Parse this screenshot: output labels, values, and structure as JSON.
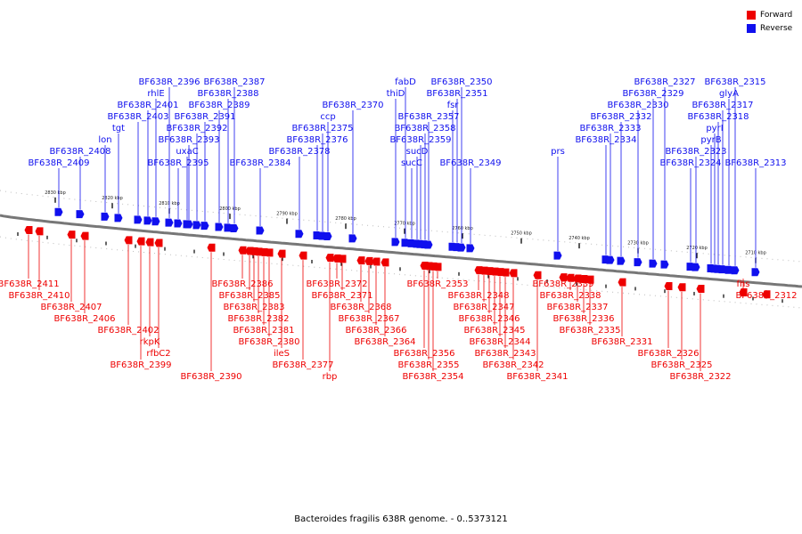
{
  "legend": [
    {
      "label": "Forward",
      "color": "#ee0000"
    },
    {
      "label": "Reverse",
      "color": "#1010ee"
    }
  ],
  "colors": {
    "forward": "#ee0000",
    "reverse": "#1010ee",
    "backbone": "#777777"
  },
  "caption": "Bacteroides fragilis 638R genome. - 0..5373121",
  "ticks": [
    "2830 kbp",
    "2820 kbp",
    "2810 kbp",
    "2800 kbp",
    "2790 kbp",
    "2780 kbp",
    "2770 kbp",
    "2760 kbp",
    "2750 kbp",
    "2740 kbp",
    "2730 kbp",
    "2720 kbp",
    "2710 kbp"
  ],
  "genes": [
    {
      "name": "BF638R_2411",
      "strand": "forward",
      "pos": 32
    },
    {
      "name": "BF638R_2410",
      "strand": "forward",
      "pos": 44
    },
    {
      "name": "BF638R_2409",
      "strand": "reverse",
      "pos": 66
    },
    {
      "name": "BF638R_2408",
      "strand": "reverse",
      "pos": 90
    },
    {
      "name": "BF638R_2407",
      "strand": "forward",
      "pos": 80
    },
    {
      "name": "BF638R_2406",
      "strand": "forward",
      "pos": 95
    },
    {
      "name": "lon",
      "strand": "reverse",
      "pos": 118
    },
    {
      "name": "tgt",
      "strand": "reverse",
      "pos": 133
    },
    {
      "name": "BF638R_2403",
      "strand": "reverse",
      "pos": 155
    },
    {
      "name": "BF638R_2402",
      "strand": "forward",
      "pos": 144
    },
    {
      "name": "BF638R_2401",
      "strand": "reverse",
      "pos": 166
    },
    {
      "name": "rhlE",
      "strand": "reverse",
      "pos": 175
    },
    {
      "name": "rkpK",
      "strand": "forward",
      "pos": 168
    },
    {
      "name": "rfbC2",
      "strand": "forward",
      "pos": 178
    },
    {
      "name": "BF638R_2399",
      "strand": "forward",
      "pos": 158
    },
    {
      "name": "BF638R_2396",
      "strand": "reverse",
      "pos": 190
    },
    {
      "name": "BF638R_2395",
      "strand": "reverse",
      "pos": 200
    },
    {
      "name": "uxaC",
      "strand": "reverse",
      "pos": 210
    },
    {
      "name": "BF638R_2393",
      "strand": "reverse",
      "pos": 212
    },
    {
      "name": "BF638R_2392",
      "strand": "reverse",
      "pos": 221
    },
    {
      "name": "BF638R_2391",
      "strand": "reverse",
      "pos": 230
    },
    {
      "name": "BF638R_2390",
      "strand": "forward",
      "pos": 237
    },
    {
      "name": "BF638R_2389",
      "strand": "reverse",
      "pos": 246
    },
    {
      "name": "BF638R_2388",
      "strand": "reverse",
      "pos": 256
    },
    {
      "name": "BF638R_2387",
      "strand": "reverse",
      "pos": 263
    },
    {
      "name": "BF638R_2386",
      "strand": "forward",
      "pos": 272
    },
    {
      "name": "BF638R_2385",
      "strand": "forward",
      "pos": 280
    },
    {
      "name": "BF638R_2384",
      "strand": "reverse",
      "pos": 292
    },
    {
      "name": "BF638R_2383",
      "strand": "forward",
      "pos": 285
    },
    {
      "name": "BF638R_2382",
      "strand": "forward",
      "pos": 290
    },
    {
      "name": "BF638R_2381",
      "strand": "forward",
      "pos": 296
    },
    {
      "name": "BF638R_2380",
      "strand": "forward",
      "pos": 302
    },
    {
      "name": "ileS",
      "strand": "forward",
      "pos": 316
    },
    {
      "name": "BF638R_2378",
      "strand": "reverse",
      "pos": 336
    },
    {
      "name": "BF638R_2377",
      "strand": "forward",
      "pos": 340
    },
    {
      "name": "BF638R_2376",
      "strand": "reverse",
      "pos": 356
    },
    {
      "name": "BF638R_2375",
      "strand": "reverse",
      "pos": 362
    },
    {
      "name": "ccp",
      "strand": "reverse",
      "pos": 368
    },
    {
      "name": "rbp",
      "strand": "forward",
      "pos": 370
    },
    {
      "name": "BF638R_2372",
      "strand": "forward",
      "pos": 378
    },
    {
      "name": "BF638R_2371",
      "strand": "forward",
      "pos": 384
    },
    {
      "name": "BF638R_2370",
      "strand": "reverse",
      "pos": 396
    },
    {
      "name": "BF638R_2368",
      "strand": "forward",
      "pos": 405
    },
    {
      "name": "BF638R_2367",
      "strand": "forward",
      "pos": 414
    },
    {
      "name": "BF638R_2366",
      "strand": "forward",
      "pos": 422
    },
    {
      "name": "BF638R_2364",
      "strand": "forward",
      "pos": 432
    },
    {
      "name": "thiD",
      "strand": "reverse",
      "pos": 444
    },
    {
      "name": "fabD",
      "strand": "reverse",
      "pos": 455
    },
    {
      "name": "sucC",
      "strand": "reverse",
      "pos": 462
    },
    {
      "name": "sucD",
      "strand": "reverse",
      "pos": 468
    },
    {
      "name": "BF638R_2359",
      "strand": "reverse",
      "pos": 472
    },
    {
      "name": "BF638R_2358",
      "strand": "reverse",
      "pos": 477
    },
    {
      "name": "BF638R_2357",
      "strand": "reverse",
      "pos": 481
    },
    {
      "name": "BF638R_2356",
      "strand": "forward",
      "pos": 476
    },
    {
      "name": "BF638R_2355",
      "strand": "forward",
      "pos": 481
    },
    {
      "name": "BF638R_2354",
      "strand": "forward",
      "pos": 486
    },
    {
      "name": "BF638R_2353",
      "strand": "forward",
      "pos": 491
    },
    {
      "name": "fsr",
      "strand": "reverse",
      "pos": 508
    },
    {
      "name": "BF638R_2351",
      "strand": "reverse",
      "pos": 513
    },
    {
      "name": "BF638R_2350",
      "strand": "reverse",
      "pos": 518
    },
    {
      "name": "BF638R_2349",
      "strand": "reverse",
      "pos": 528
    },
    {
      "name": "BF638R_2348",
      "strand": "forward",
      "pos": 537
    },
    {
      "name": "BF638R_2347",
      "strand": "forward",
      "pos": 543
    },
    {
      "name": "BF638R_2346",
      "strand": "forward",
      "pos": 549
    },
    {
      "name": "BF638R_2345",
      "strand": "forward",
      "pos": 555
    },
    {
      "name": "BF638R_2344",
      "strand": "forward",
      "pos": 561
    },
    {
      "name": "BF638R_2343",
      "strand": "forward",
      "pos": 567
    },
    {
      "name": "BF638R_2342",
      "strand": "forward",
      "pos": 576
    },
    {
      "name": "BF638R_2341",
      "strand": "forward",
      "pos": 603
    },
    {
      "name": "prs",
      "strand": "reverse",
      "pos": 626
    },
    {
      "name": "BF638R_2339",
      "strand": "forward",
      "pos": 632
    },
    {
      "name": "BF638R_2338",
      "strand": "forward",
      "pos": 640
    },
    {
      "name": "BF638R_2337",
      "strand": "forward",
      "pos": 648
    },
    {
      "name": "BF638R_2336",
      "strand": "forward",
      "pos": 655
    },
    {
      "name": "BF638R_2335",
      "strand": "forward",
      "pos": 662
    },
    {
      "name": "BF638R_2334",
      "strand": "reverse",
      "pos": 680
    },
    {
      "name": "BF638R_2333",
      "strand": "reverse",
      "pos": 685
    },
    {
      "name": "BF638R_2332",
      "strand": "reverse",
      "pos": 697
    },
    {
      "name": "BF638R_2331",
      "strand": "forward",
      "pos": 698
    },
    {
      "name": "BF638R_2330",
      "strand": "reverse",
      "pos": 716
    },
    {
      "name": "BF638R_2329",
      "strand": "reverse",
      "pos": 733
    },
    {
      "name": "BF638R_2327",
      "strand": "reverse",
      "pos": 746
    },
    {
      "name": "BF638R_2326",
      "strand": "forward",
      "pos": 750
    },
    {
      "name": "BF638R_2325",
      "strand": "forward",
      "pos": 765
    },
    {
      "name": "BF638R_2324",
      "strand": "reverse",
      "pos": 775
    },
    {
      "name": "BF638R_2323",
      "strand": "reverse",
      "pos": 781
    },
    {
      "name": "BF638R_2322",
      "strand": "forward",
      "pos": 786
    },
    {
      "name": "pyrB",
      "strand": "reverse",
      "pos": 798
    },
    {
      "name": "pyrI",
      "strand": "reverse",
      "pos": 802
    },
    {
      "name": "BF638R_2318",
      "strand": "reverse",
      "pos": 806
    },
    {
      "name": "BF638R_2317",
      "strand": "reverse",
      "pos": 811
    },
    {
      "name": "glyA",
      "strand": "reverse",
      "pos": 818
    },
    {
      "name": "BF638R_2315",
      "strand": "reverse",
      "pos": 825
    },
    {
      "name": "fhs",
      "strand": "forward",
      "pos": 834
    },
    {
      "name": "BF638R_2313",
      "strand": "reverse",
      "pos": 848
    },
    {
      "name": "BF638R_2312",
      "strand": "forward",
      "pos": 860
    }
  ]
}
